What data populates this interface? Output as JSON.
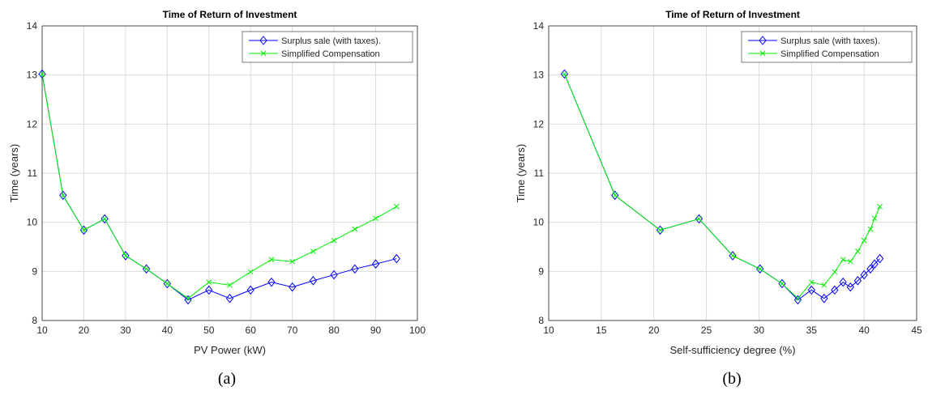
{
  "chart_data": [
    {
      "type": "line",
      "title": "Time of Return of Investment",
      "xlabel": "PV Power (kW)",
      "ylabel": "Time (years)",
      "caption": "(a)",
      "x": [
        10,
        15,
        20,
        25,
        30,
        35,
        40,
        45,
        50,
        55,
        60,
        65,
        70,
        75,
        80,
        85,
        90,
        95
      ],
      "series": [
        {
          "name": "Surplus sale (with taxes).",
          "color": "#0000ff",
          "marker": "diamond",
          "values": [
            13.02,
            10.55,
            9.84,
            10.07,
            9.32,
            9.05,
            8.75,
            8.42,
            8.62,
            8.45,
            8.62,
            8.78,
            8.68,
            8.81,
            8.93,
            9.05,
            9.15,
            9.26
          ]
        },
        {
          "name": "Simplified Compensation",
          "color": "#00ee00",
          "marker": "x",
          "values": [
            13.02,
            10.55,
            9.84,
            10.07,
            9.32,
            9.05,
            8.75,
            8.45,
            8.78,
            8.72,
            8.99,
            9.24,
            9.2,
            9.41,
            9.63,
            9.86,
            10.08,
            10.32
          ]
        }
      ],
      "xlim": [
        10,
        100
      ],
      "xticks": [
        10,
        20,
        30,
        40,
        50,
        60,
        70,
        80,
        90,
        100
      ],
      "ylim": [
        8,
        14
      ],
      "yticks": [
        8,
        9,
        10,
        11,
        12,
        13,
        14
      ],
      "grid": true,
      "legend": "upper-right"
    },
    {
      "type": "line",
      "title": "Time of Return of Investment",
      "xlabel": "Self-sufficiency degree (%)",
      "ylabel": "Time (years)",
      "caption": "(b)",
      "x": [
        11.5,
        16.3,
        20.6,
        24.3,
        27.5,
        30.1,
        32.2,
        33.7,
        35.0,
        36.2,
        37.2,
        38.0,
        38.7,
        39.4,
        40.0,
        40.6,
        41.0,
        41.5
      ],
      "series": [
        {
          "name": "Surplus sale (with taxes).",
          "color": "#0000ff",
          "marker": "diamond",
          "values": [
            13.02,
            10.55,
            9.84,
            10.07,
            9.32,
            9.05,
            8.75,
            8.42,
            8.62,
            8.45,
            8.62,
            8.78,
            8.68,
            8.81,
            8.93,
            9.05,
            9.15,
            9.26
          ]
        },
        {
          "name": "Simplified Compensation",
          "color": "#00ee00",
          "marker": "x",
          "values": [
            13.02,
            10.55,
            9.84,
            10.07,
            9.32,
            9.05,
            8.75,
            8.45,
            8.78,
            8.72,
            8.99,
            9.24,
            9.2,
            9.41,
            9.63,
            9.86,
            10.08,
            10.32
          ]
        }
      ],
      "xlim": [
        10,
        45
      ],
      "xticks": [
        10,
        15,
        20,
        25,
        30,
        35,
        40,
        45
      ],
      "ylim": [
        8,
        14
      ],
      "yticks": [
        8,
        9,
        10,
        11,
        12,
        13,
        14
      ],
      "grid": true,
      "legend": "upper-right"
    }
  ]
}
